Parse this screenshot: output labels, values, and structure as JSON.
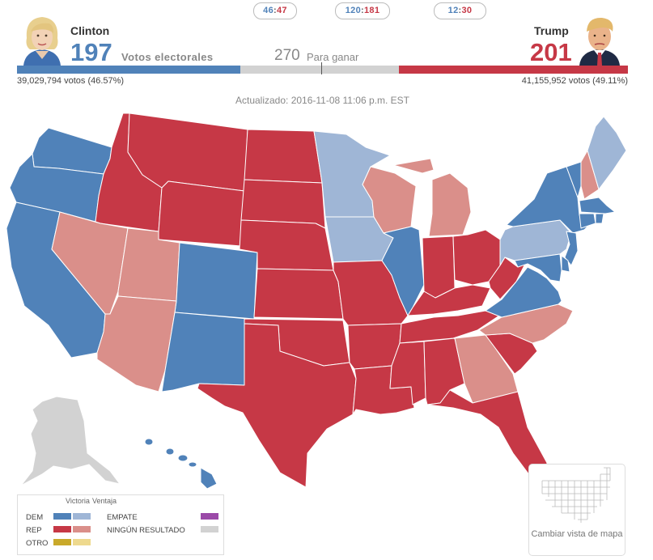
{
  "header": {
    "pills": [
      {
        "dem": "46",
        "rep": "47"
      },
      {
        "dem": "120",
        "rep": "181"
      },
      {
        "dem": "12",
        "rep": "30"
      }
    ],
    "clinton": {
      "name": "Clinton",
      "electoral": "197",
      "popular": "39,029,794 votos (46.57%)",
      "electoral_label": "Votos electorales"
    },
    "trump": {
      "name": "Trump",
      "electoral": "201",
      "popular": "41,155,952 votos (49.11%)"
    },
    "to_win_number": "270",
    "to_win_label": "Para ganar",
    "updated": "Actualizado: 2016-11-08 11:06 p.m. EST"
  },
  "bar": {
    "dem_votes": 197,
    "rep_votes": 201,
    "total": 538
  },
  "colors": {
    "dem_win": "#5082b9",
    "dem_lead": "#9fb6d6",
    "rep_win": "#c63846",
    "rep_lead": "#da8f8a",
    "other_win": "#c9a92a",
    "other_lead": "#eed98e",
    "tie": "#9b4aa8",
    "no_result": "#d2d2d2"
  },
  "legend": {
    "victory": "Victoria",
    "lead": "Ventaja",
    "dem": "DEM",
    "rep": "REP",
    "other": "OTRO",
    "tie": "EMPATE",
    "no_result": "NINGÚN RESULTADO"
  },
  "states": {
    "dem_win": [
      "Washington",
      "Oregon",
      "California",
      "Colorado",
      "New Mexico",
      "Illinois",
      "Virginia",
      "New York",
      "Vermont",
      "Massachusetts",
      "Connecticut",
      "Rhode Island",
      "New Jersey",
      "Delaware",
      "Maryland",
      "District of Columbia",
      "Hawaii"
    ],
    "dem_lead": [
      "Minnesota",
      "Iowa",
      "Pennsylvania",
      "Maine"
    ],
    "rep_win": [
      "Idaho",
      "Montana",
      "Wyoming",
      "North Dakota",
      "South Dakota",
      "Nebraska",
      "Kansas",
      "Oklahoma",
      "Texas",
      "Missouri",
      "Arkansas",
      "Louisiana",
      "Mississippi",
      "Alabama",
      "Tennessee",
      "Kentucky",
      "Indiana",
      "Ohio",
      "West Virginia",
      "South Carolina",
      "Florida"
    ],
    "rep_lead": [
      "Nevada",
      "Utah",
      "Arizona",
      "Wisconsin",
      "Michigan",
      "Georgia",
      "North Carolina",
      "New Hampshire"
    ],
    "no_result": [
      "Alaska"
    ]
  },
  "map_toggle": {
    "label": "Cambiar vista de mapa"
  }
}
